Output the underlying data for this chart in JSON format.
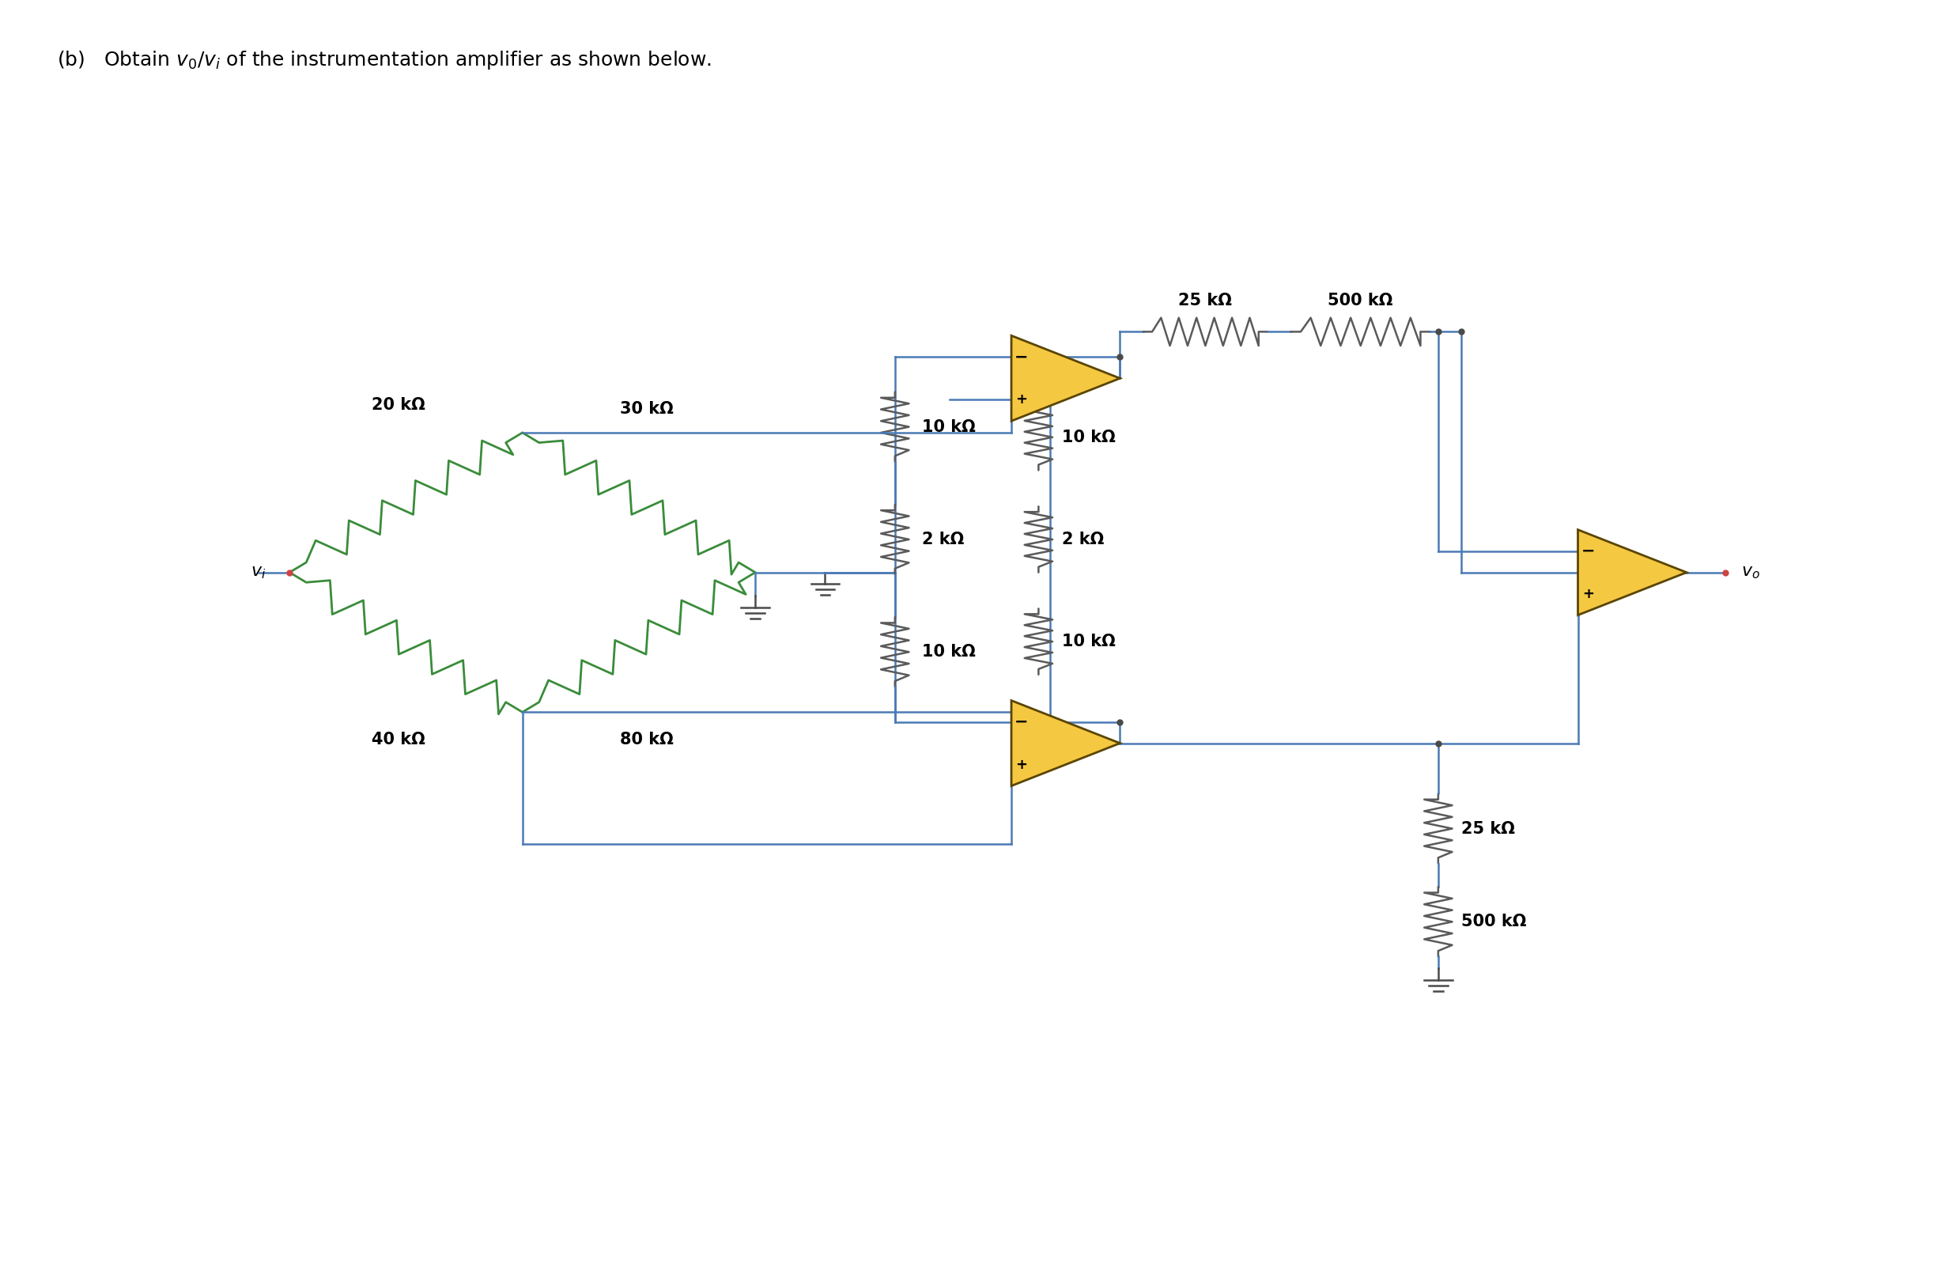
{
  "title": "(b)   Obtain $v_0/v_i$ of the instrumentation amplifier as shown below.",
  "bg_color": "#ffffff",
  "line_color": "#4a4a4a",
  "resistor_color_green": "#3a8c3a",
  "resistor_color_dark": "#5a5a5a",
  "opamp_fill": "#f5c842",
  "opamp_stroke": "#5a4500",
  "wire_color": "#4a7ab5",
  "labels": {
    "20kohm": "20 kΩ",
    "30kohm": "30 kΩ",
    "40kohm": "40 kΩ",
    "80kohm": "80 kΩ",
    "10kohm_top": "10 kΩ",
    "2kohm": "2 kΩ",
    "10kohm_bot": "10 kΩ",
    "25kohm_top": "25 kΩ",
    "500kohm_top": "500 kΩ",
    "25kohm_bot": "25 kΩ",
    "500kohm_bot": "500 kΩ",
    "vi": "$v_i$",
    "vo": "$v_o$"
  }
}
